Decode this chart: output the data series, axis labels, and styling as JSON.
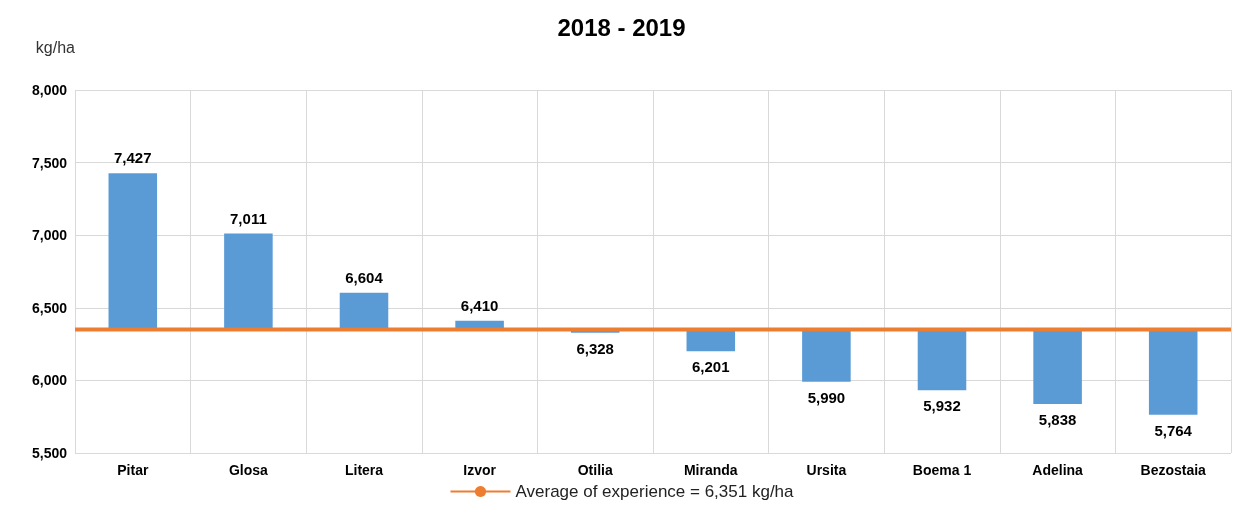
{
  "chart_data": {
    "type": "bar",
    "title": "2018 - 2019",
    "ylabel": "kg/ha",
    "categories": [
      "Pitar",
      "Glosa",
      "Litera",
      "Izvor",
      "Otilia",
      "Miranda",
      "Ursita",
      "Boema 1",
      "Adelina",
      "Bezostaia"
    ],
    "base": [
      6351,
      6351,
      6351,
      6351,
      6351,
      6351,
      6351,
      6351,
      6351,
      6351
    ],
    "values": [
      1076,
      660,
      253,
      59,
      -23,
      -150,
      -361,
      -419,
      -513,
      -587
    ],
    "value_labels": [
      "7,427",
      "7,011",
      "6,604",
      "6,410",
      "6,328",
      "6,201",
      "5,990",
      "5,932",
      "5,838",
      "5,764"
    ],
    "color": "#5b9bd5",
    "ylim": [
      5500,
      8000
    ],
    "yticks": [
      {
        "value": 5500,
        "label": "5,500"
      },
      {
        "value": 6000,
        "label": "6,000"
      },
      {
        "value": 6500,
        "label": "6,500"
      },
      {
        "value": 7000,
        "label": "7,000"
      },
      {
        "value": 7500,
        "label": "7,500"
      },
      {
        "value": 8000,
        "label": "8,000"
      }
    ],
    "ref_lines": [
      {
        "axis": "y",
        "value": 6351,
        "label": "Average of experience = 6,351 kg/ha",
        "color": "#ed7d31"
      }
    ],
    "grid": true,
    "legend": "bottom"
  }
}
